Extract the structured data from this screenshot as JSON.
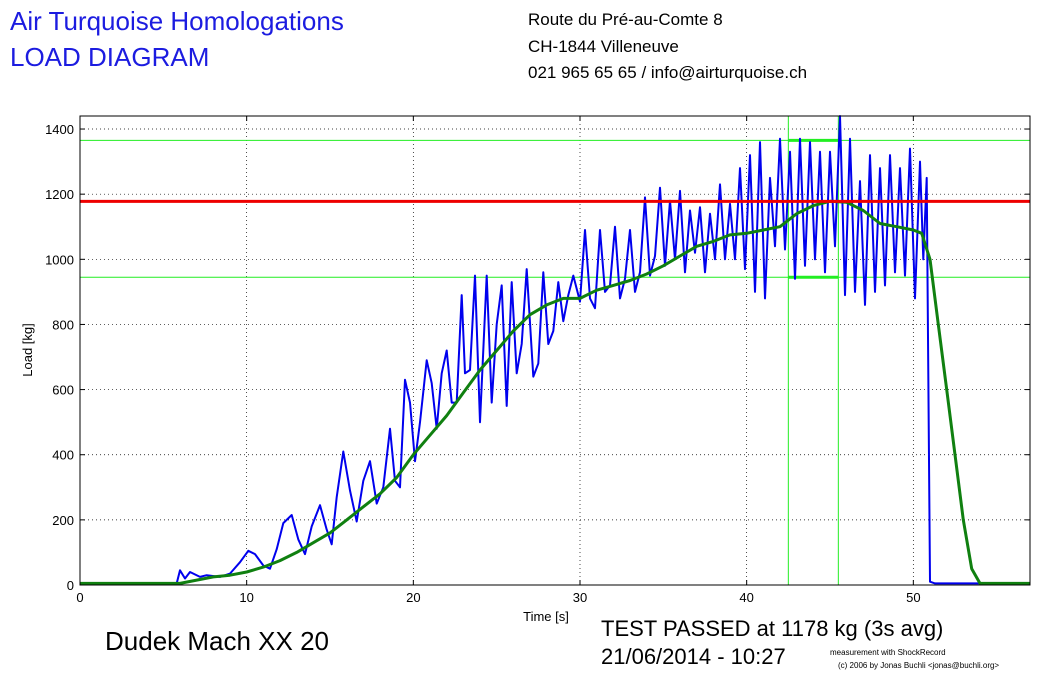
{
  "header": {
    "company": "Air Turquoise Homologations",
    "doc_title": "LOAD DIAGRAM",
    "address_line1": "Route du Pré-au-Comte 8",
    "address_line2": "CH-1844 Villeneuve",
    "contact_line": "021 965 65 65 / info@airturquoise.ch"
  },
  "footer": {
    "glider": "Dudek Mach XX 20",
    "result": "TEST PASSED at 1178 kg (3s avg)",
    "datetime": "21/06/2014 - 10:27",
    "credit_line1": "measurement with ShockRecord",
    "credit_line2": "(c) 2006 by Jonas Buchli <jonas@buchli.org>"
  },
  "colors": {
    "raw_series": "#0000ee",
    "avg_series": "#108010",
    "threshold": "#ee0000",
    "markers": "#22ee22"
  },
  "chart_data": {
    "type": "line",
    "title": "",
    "xlabel": "Time [s]",
    "ylabel": "Load [kg]",
    "xlim": [
      0,
      57
    ],
    "ylim": [
      0,
      1440
    ],
    "xticks": [
      0,
      10,
      20,
      30,
      40,
      50
    ],
    "yticks": [
      0,
      200,
      400,
      600,
      800,
      1000,
      1200,
      1400
    ],
    "grid": true,
    "threshold_load": 1178,
    "marker_band": {
      "x": [
        42.5,
        45.5
      ],
      "y": [
        945,
        1365
      ]
    },
    "series": [
      {
        "key": "raw",
        "x": [
          0,
          5.8,
          6.0,
          6.3,
          6.6,
          7.2,
          7.6,
          8.4,
          9.0,
          9.6,
          10.1,
          10.5,
          11.0,
          11.4,
          11.8,
          12.2,
          12.7,
          13.1,
          13.5,
          13.9,
          14.4,
          14.8,
          15.1,
          15.4,
          15.8,
          16.2,
          16.6,
          17.0,
          17.4,
          17.8,
          18.2,
          18.6,
          18.9,
          19.2,
          19.5,
          19.8,
          20.1,
          20.4,
          20.8,
          21.1,
          21.4,
          21.7,
          22.0,
          22.3,
          22.6,
          22.9,
          23.1,
          23.4,
          23.7,
          24.0,
          24.4,
          24.7,
          25.0,
          25.3,
          25.6,
          25.9,
          26.2,
          26.5,
          26.8,
          27.2,
          27.5,
          27.8,
          28.1,
          28.4,
          28.7,
          29.0,
          29.3,
          29.6,
          30.0,
          30.3,
          30.6,
          30.9,
          31.2,
          31.5,
          31.8,
          32.1,
          32.4,
          32.7,
          33.0,
          33.3,
          33.6,
          33.9,
          34.2,
          34.5,
          34.8,
          35.1,
          35.4,
          35.7,
          36.0,
          36.3,
          36.6,
          36.9,
          37.2,
          37.5,
          37.8,
          38.1,
          38.4,
          38.7,
          39.0,
          39.3,
          39.6,
          39.9,
          40.2,
          40.5,
          40.8,
          41.1,
          41.4,
          41.7,
          42.0,
          42.3,
          42.6,
          42.9,
          43.2,
          43.5,
          43.8,
          44.1,
          44.4,
          44.7,
          45.0,
          45.3,
          45.6,
          45.9,
          46.2,
          46.5,
          46.8,
          47.1,
          47.4,
          47.7,
          48.0,
          48.3,
          48.6,
          48.9,
          49.2,
          49.5,
          49.8,
          50.1,
          50.4,
          50.6,
          50.8,
          51.0,
          51.3,
          51.6,
          53.8,
          57
        ],
        "y": [
          5,
          5,
          45,
          20,
          40,
          25,
          30,
          25,
          35,
          70,
          105,
          95,
          60,
          50,
          110,
          190,
          215,
          140,
          95,
          180,
          245,
          170,
          125,
          270,
          410,
          290,
          195,
          320,
          380,
          250,
          300,
          480,
          320,
          300,
          630,
          560,
          380,
          500,
          690,
          620,
          480,
          650,
          720,
          560,
          560,
          890,
          650,
          660,
          950,
          500,
          950,
          560,
          800,
          920,
          550,
          930,
          650,
          740,
          970,
          640,
          680,
          960,
          740,
          780,
          930,
          810,
          890,
          950,
          870,
          1090,
          880,
          850,
          1090,
          900,
          920,
          1100,
          880,
          940,
          1090,
          900,
          960,
          1190,
          950,
          1010,
          1220,
          980,
          1180,
          1000,
          1210,
          960,
          1150,
          1020,
          1160,
          960,
          1140,
          1000,
          1230,
          1000,
          1170,
          1000,
          1280,
          970,
          1320,
          900,
          1360,
          880,
          1250,
          1040,
          1370,
          1030,
          1330,
          940,
          1370,
          980,
          1360,
          1000,
          1330,
          960,
          1330,
          1040,
          1440,
          890,
          1370,
          900,
          1240,
          860,
          1320,
          900,
          1280,
          920,
          1320,
          960,
          1280,
          950,
          1340,
          880,
          1300,
          1000,
          1250,
          10,
          5,
          5,
          5,
          5
        ]
      },
      {
        "key": "avg",
        "x": [
          0,
          5.0,
          6.0,
          7.0,
          8.0,
          9.0,
          10.0,
          11.0,
          12.0,
          13.0,
          14.0,
          15.0,
          16.0,
          17.0,
          18.0,
          19.0,
          20.0,
          21.0,
          22.0,
          23.0,
          24.0,
          25.0,
          26.0,
          27.0,
          28.0,
          29.0,
          30.0,
          31.0,
          32.0,
          33.0,
          34.0,
          35.0,
          36.0,
          37.0,
          38.0,
          39.0,
          40.0,
          41.0,
          42.0,
          42.5,
          43.0,
          44.0,
          45.0,
          46.0,
          47.0,
          48.0,
          49.0,
          50.0,
          50.5,
          51.0,
          51.5,
          52.0,
          52.5,
          53.0,
          53.5,
          54.0,
          57
        ],
        "y": [
          5,
          5,
          5,
          15,
          25,
          30,
          40,
          55,
          75,
          100,
          130,
          160,
          200,
          240,
          280,
          330,
          400,
          460,
          520,
          590,
          660,
          720,
          780,
          830,
          860,
          880,
          880,
          905,
          920,
          935,
          955,
          980,
          1010,
          1040,
          1055,
          1075,
          1080,
          1090,
          1100,
          1120,
          1140,
          1165,
          1178,
          1175,
          1150,
          1110,
          1100,
          1090,
          1080,
          1000,
          800,
          600,
          400,
          200,
          50,
          5,
          5
        ]
      }
    ]
  }
}
